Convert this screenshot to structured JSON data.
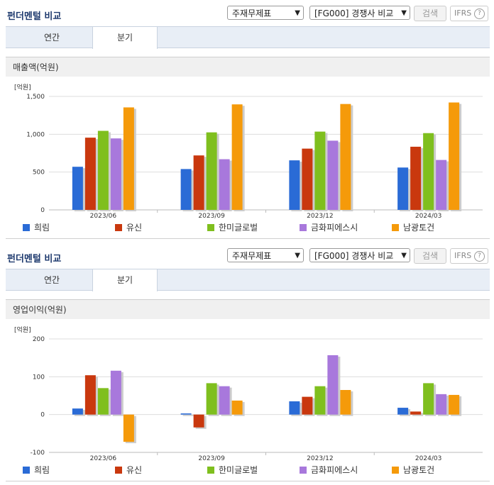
{
  "colors": {
    "series": [
      "#2a6bd6",
      "#c9380e",
      "#7fbf1e",
      "#a878dc",
      "#f59a0a"
    ]
  },
  "panels": [
    {
      "title": "펀더멘털 비교",
      "select1": "주재무제표",
      "select2": "[FG000] 경쟁사 비교",
      "search_label": "검색",
      "ifrs_label": "IFRS",
      "help_glyph": "?",
      "tabs": [
        "연간",
        "분기"
      ],
      "active_tab": 1,
      "section_label": "매출액(억원)",
      "legend": [
        "희림",
        "유신",
        "한미글로벌",
        "금화피에스시",
        "남광토건"
      ]
    },
    {
      "title": "펀더멘털 비교",
      "select1": "주재무제표",
      "select2": "[FG000] 경쟁사 비교",
      "search_label": "검색",
      "ifrs_label": "IFRS",
      "help_glyph": "?",
      "tabs": [
        "연간",
        "분기"
      ],
      "active_tab": 1,
      "section_label": "영업이익(억원)",
      "legend": [
        "희림",
        "유신",
        "한미글로벌",
        "금화피에스시",
        "남광토건"
      ]
    }
  ],
  "chart_data": [
    {
      "type": "bar",
      "unit_label": "[억원]",
      "categories": [
        "2023/06",
        "2023/09",
        "2023/12",
        "2024/03"
      ],
      "ylim": [
        0,
        1500
      ],
      "yticks": [
        0,
        500,
        1000,
        1500
      ],
      "ytick_labels": [
        "0",
        "500",
        "1,000",
        "1,500"
      ],
      "series": [
        {
          "name": "희림",
          "values": [
            570,
            540,
            655,
            560
          ]
        },
        {
          "name": "유신",
          "values": [
            955,
            720,
            810,
            835
          ]
        },
        {
          "name": "한미글로벌",
          "values": [
            1045,
            1025,
            1035,
            1015
          ]
        },
        {
          "name": "금화피에스시",
          "values": [
            945,
            670,
            915,
            660
          ]
        },
        {
          "name": "남광토건",
          "values": [
            1355,
            1395,
            1400,
            1420
          ]
        }
      ]
    },
    {
      "type": "bar",
      "unit_label": "[억원]",
      "categories": [
        "2023/06",
        "2023/09",
        "2023/12",
        "2024/03"
      ],
      "ylim": [
        -100,
        200
      ],
      "yticks": [
        -100,
        0,
        100,
        200
      ],
      "ytick_labels": [
        "-100",
        "0",
        "100",
        "200"
      ],
      "series": [
        {
          "name": "희림",
          "values": [
            16,
            3,
            35,
            18
          ]
        },
        {
          "name": "유신",
          "values": [
            104,
            -34,
            47,
            8
          ]
        },
        {
          "name": "한미글로벌",
          "values": [
            70,
            83,
            75,
            83
          ]
        },
        {
          "name": "금화피에스시",
          "values": [
            116,
            75,
            157,
            54
          ]
        },
        {
          "name": "남광토건",
          "values": [
            -72,
            37,
            65,
            52
          ]
        }
      ]
    }
  ]
}
